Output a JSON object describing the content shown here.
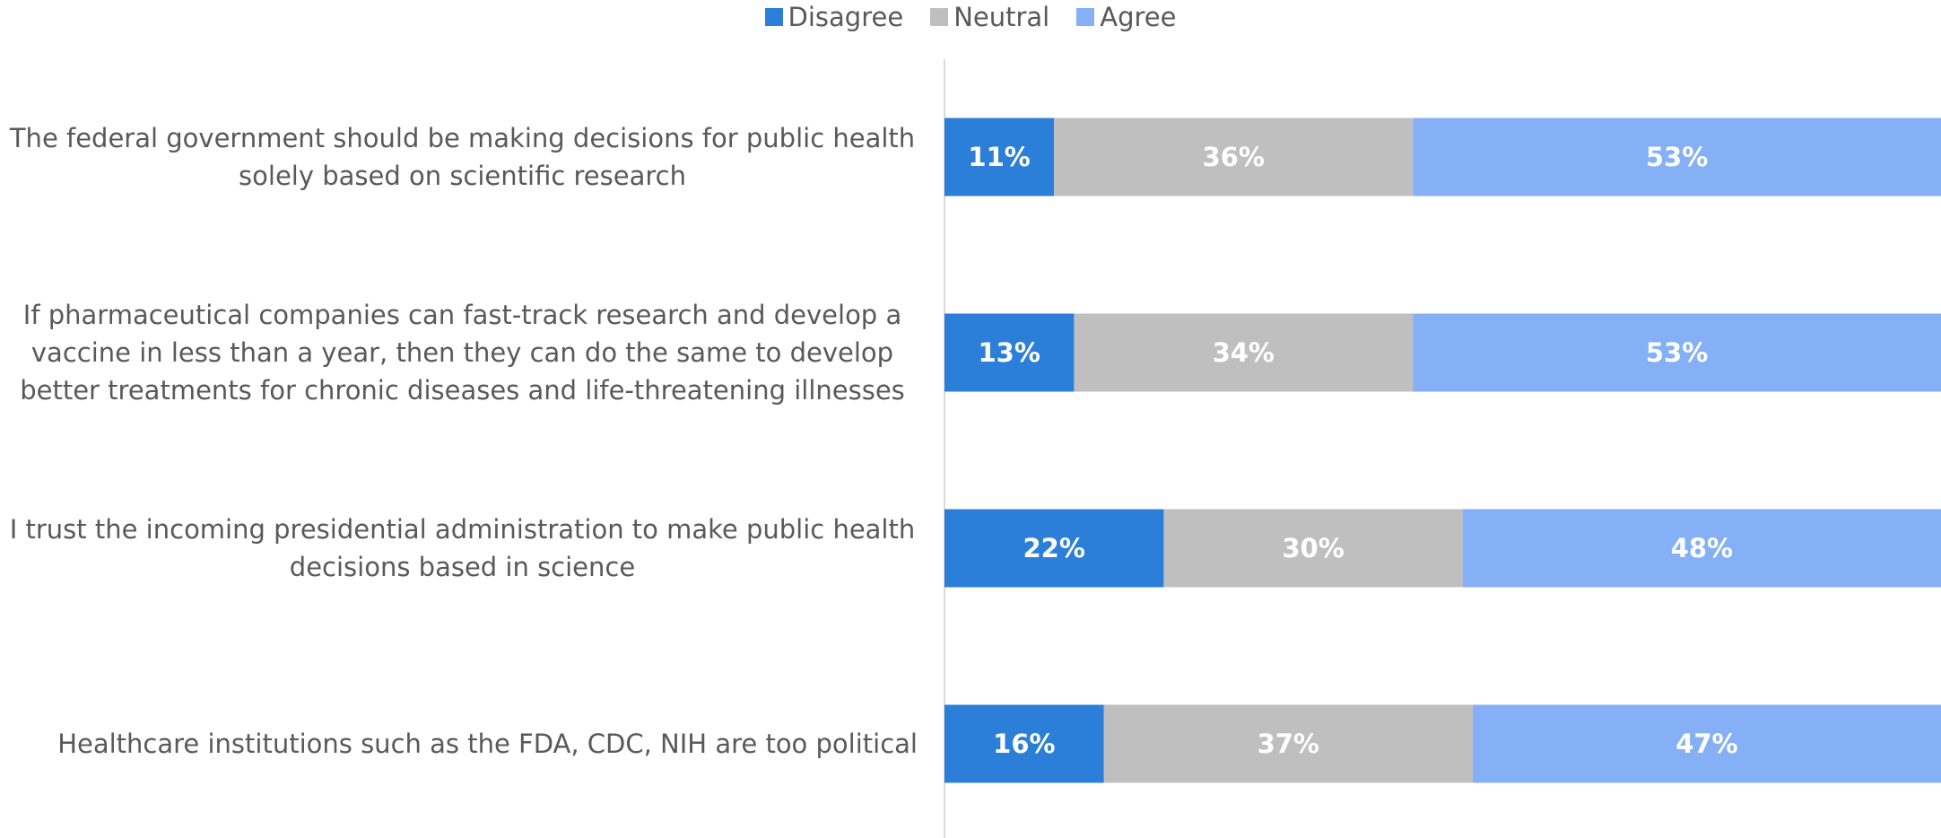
{
  "chart_data": {
    "type": "stacked-bar-horizontal",
    "categories": [
      "The federal government should be making decisions for public health solely based on scientific research",
      "If pharmaceutical companies can fast-track research and develop a vaccine in less than a year, then they can do the same to develop better treatments for chronic diseases and life-threatening illnesses",
      "I trust the incoming presidential administration to make public health decisions based in science",
      "Healthcare institutions such as the FDA, CDC, NIH are too political"
    ],
    "series": [
      {
        "name": "Disagree",
        "color": "#2b7fd8",
        "values": [
          11,
          13,
          22,
          16
        ],
        "value_labels": [
          "11%",
          "13%",
          "22%",
          "16%"
        ]
      },
      {
        "name": "Neutral",
        "color": "#bfbfbf",
        "values": [
          36,
          34,
          30,
          37
        ],
        "value_labels": [
          "36%",
          "34%",
          "30%",
          "37%"
        ]
      },
      {
        "name": "Agree",
        "color": "#85b0f5",
        "values": [
          53,
          53,
          48,
          47
        ],
        "value_labels": [
          "53%",
          "53%",
          "48%",
          "47%"
        ]
      }
    ],
    "xlim": [
      0,
      100
    ],
    "legend": "top"
  }
}
